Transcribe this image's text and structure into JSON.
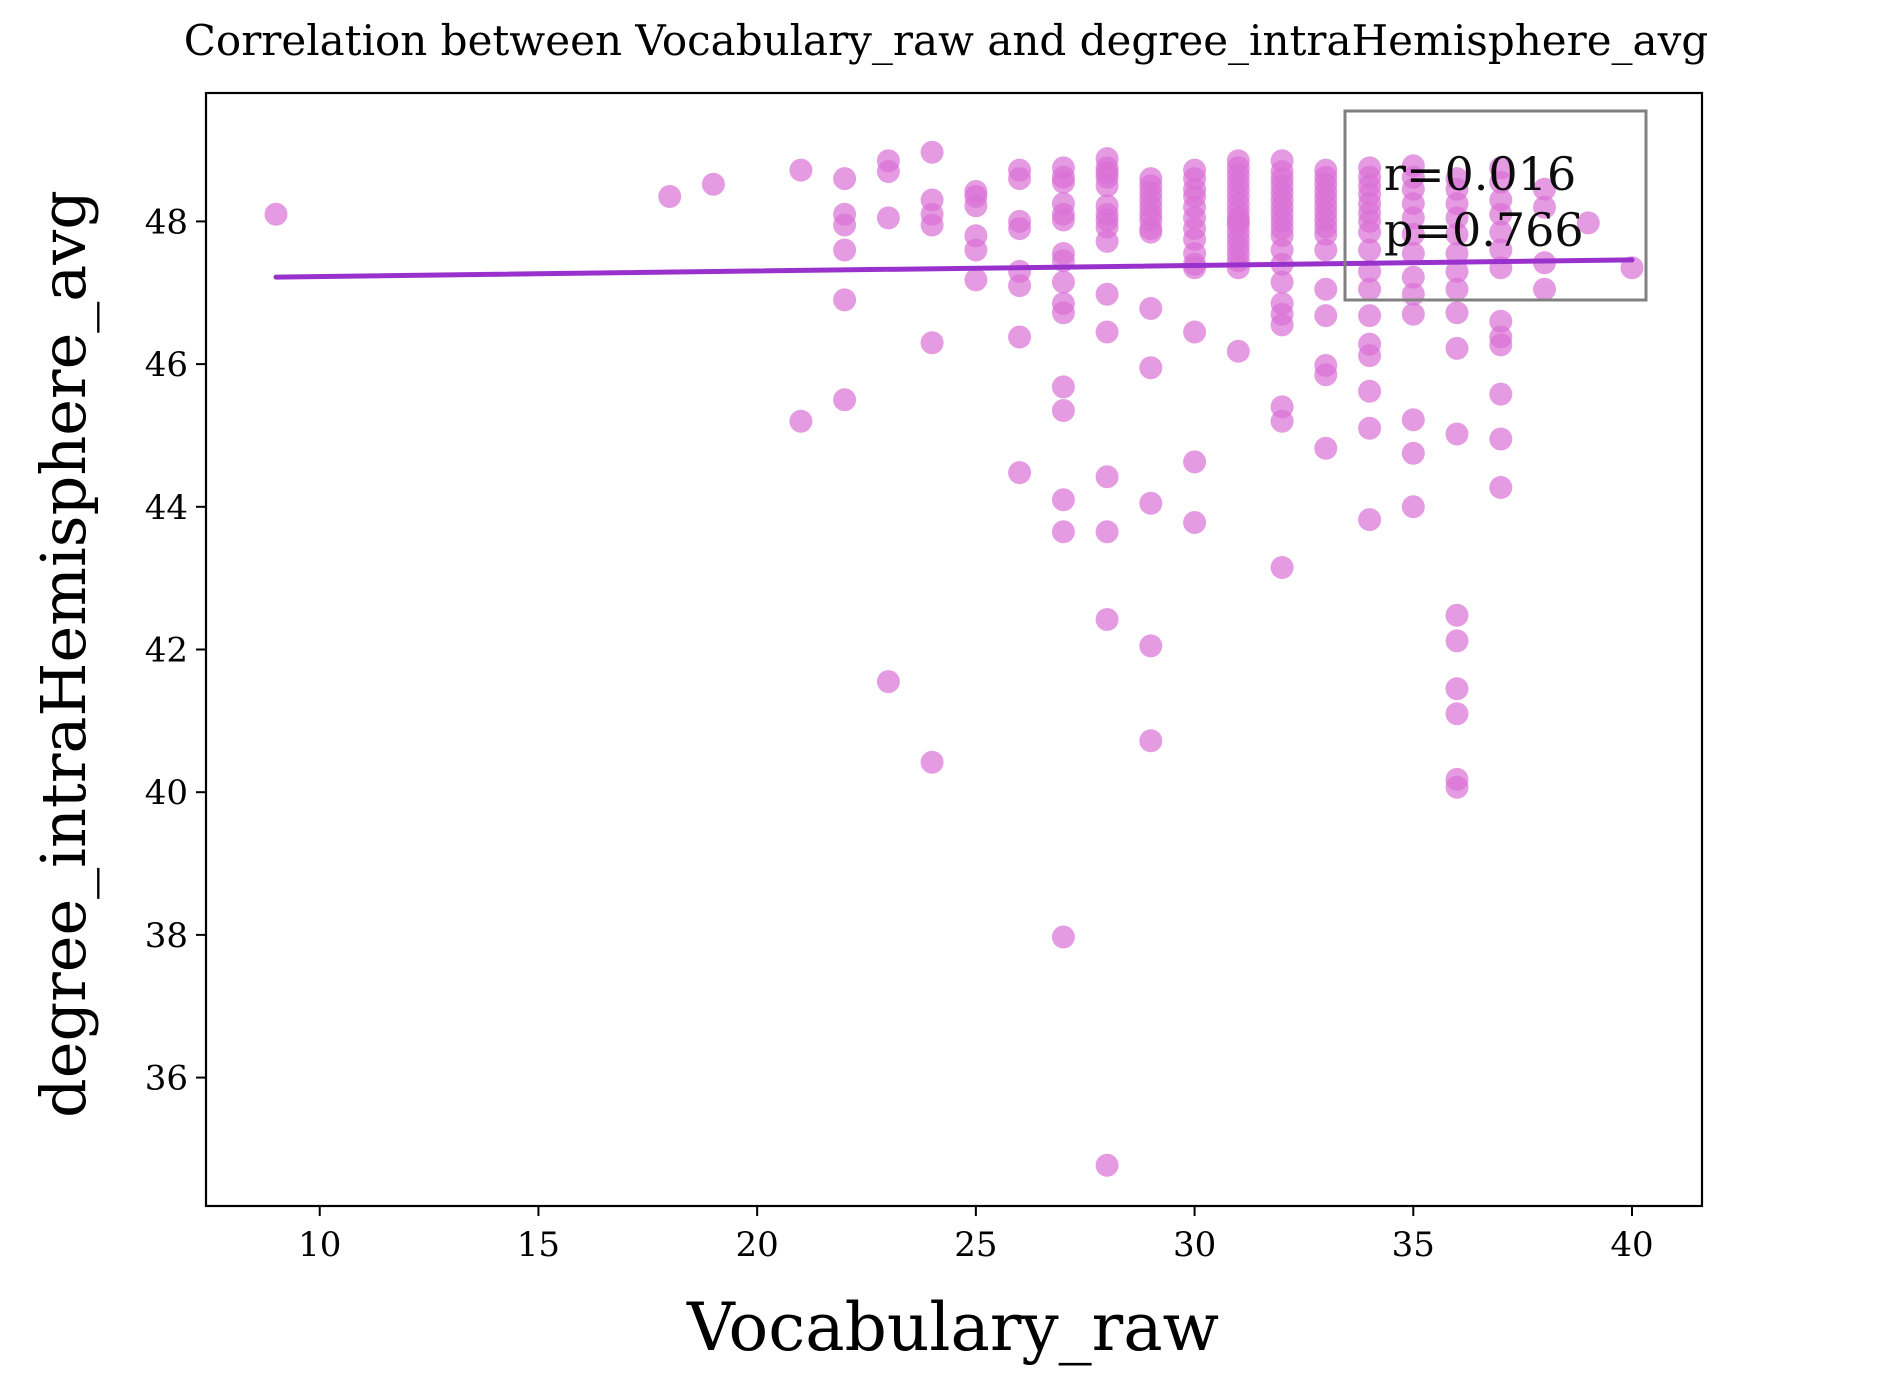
{
  "chart_data": {
    "type": "scatter",
    "title": "Correlation between Vocabulary_raw and degree_intraHemisphere_avg",
    "xlabel": "Vocabulary_raw",
    "ylabel": "degree_intraHemisphere_avg",
    "xlim": [
      7.4,
      41.6
    ],
    "ylim": [
      34.2,
      49.8
    ],
    "xticks": [
      10,
      15,
      20,
      25,
      30,
      35,
      40
    ],
    "yticks": [
      36,
      38,
      40,
      42,
      44,
      46,
      48
    ],
    "grid": false,
    "annotation": {
      "lines": [
        "r=0.016",
        "p=0.766"
      ],
      "placement": "top-right"
    },
    "colors": {
      "points": "#da70d6",
      "regression_line": "#9932cc",
      "annotation_text": "#808080",
      "annotation_border": "#808080"
    },
    "regression_line": {
      "x": [
        9,
        40
      ],
      "y": [
        47.22,
        47.46
      ]
    },
    "series": [
      {
        "x": [
          9,
          18,
          19,
          21,
          21,
          22,
          22,
          22,
          22,
          22,
          22,
          23,
          23,
          23,
          23,
          24,
          24,
          24,
          24,
          24,
          24,
          25,
          25,
          25,
          25,
          25,
          25,
          26,
          26,
          26,
          26,
          26,
          26,
          26,
          26,
          27,
          27,
          27,
          27,
          27,
          27,
          27,
          27,
          27,
          27,
          27,
          27,
          27,
          27,
          27,
          27,
          28,
          28,
          28,
          28,
          28,
          28,
          28,
          28,
          28,
          28,
          28,
          28,
          28,
          28,
          28,
          28,
          29,
          29,
          29,
          29,
          29,
          29,
          29,
          29,
          29,
          29,
          29,
          29,
          29,
          29,
          30,
          30,
          30,
          30,
          30,
          30,
          30,
          30,
          30,
          30,
          30,
          30,
          30,
          30,
          31,
          31,
          31,
          31,
          31,
          31,
          31,
          31,
          31,
          31,
          31,
          31,
          31,
          31,
          31,
          31,
          31,
          31,
          32,
          32,
          32,
          32,
          32,
          32,
          32,
          32,
          32,
          32,
          32,
          32,
          32,
          32,
          32,
          32,
          32,
          32,
          32,
          32,
          33,
          33,
          33,
          33,
          33,
          33,
          33,
          33,
          33,
          33,
          33,
          33,
          33,
          33,
          33,
          33,
          34,
          34,
          34,
          34,
          34,
          34,
          34,
          34,
          34,
          34,
          34,
          34,
          34,
          34,
          34,
          34,
          34,
          35,
          35,
          35,
          35,
          35,
          35,
          35,
          35,
          35,
          35,
          35,
          35,
          35,
          36,
          36,
          36,
          36,
          36,
          36,
          36,
          36,
          36,
          36,
          36,
          36,
          36,
          36,
          36,
          36,
          36,
          37,
          37,
          37,
          37,
          37,
          37,
          37,
          37,
          37,
          37,
          37,
          37,
          37,
          38,
          38,
          38,
          38,
          39,
          40
        ],
        "y": [
          48.1,
          48.35,
          48.52,
          48.72,
          45.2,
          48.6,
          48.1,
          47.95,
          47.6,
          46.9,
          45.5,
          48.85,
          48.7,
          48.05,
          41.55,
          48.97,
          48.3,
          48.1,
          47.95,
          46.3,
          40.42,
          48.42,
          48.35,
          48.22,
          47.8,
          47.6,
          47.18,
          48.72,
          48.6,
          48.0,
          47.9,
          47.3,
          47.1,
          46.38,
          44.48,
          48.75,
          48.62,
          48.55,
          48.25,
          48.1,
          48.02,
          47.55,
          47.45,
          47.15,
          46.85,
          46.72,
          45.68,
          45.35,
          44.1,
          43.65,
          37.97,
          48.88,
          48.75,
          48.62,
          48.5,
          48.22,
          48.1,
          48.02,
          47.92,
          47.72,
          46.98,
          46.45,
          44.42,
          43.65,
          42.42,
          34.77,
          48.68,
          48.6,
          48.5,
          48.4,
          48.3,
          48.2,
          48.1,
          48.02,
          47.9,
          47.85,
          46.78,
          45.95,
          44.05,
          42.05,
          40.72,
          48.72,
          48.6,
          48.45,
          48.2,
          48.05,
          47.9,
          47.75,
          47.55,
          47.4,
          47.35,
          46.45,
          44.63,
          43.78,
          48.35,
          48.85,
          48.75,
          48.65,
          48.55,
          48.45,
          48.35,
          48.25,
          48.15,
          48.05,
          47.95,
          47.85,
          47.75,
          47.65,
          47.55,
          47.45,
          47.35,
          46.18,
          48.0,
          48.85,
          48.7,
          48.6,
          48.5,
          48.4,
          48.3,
          48.2,
          48.1,
          48.0,
          47.9,
          47.8,
          47.6,
          47.4,
          47.15,
          46.85,
          46.7,
          46.55,
          45.4,
          45.2,
          43.15,
          48.72,
          48.62,
          48.52,
          48.42,
          48.32,
          48.22,
          48.12,
          48.02,
          47.92,
          47.82,
          47.6,
          47.05,
          46.68,
          45.98,
          45.85,
          44.82,
          48.75,
          48.62,
          48.5,
          48.38,
          48.25,
          48.12,
          48.0,
          47.85,
          47.6,
          47.3,
          47.05,
          46.68,
          46.28,
          46.12,
          45.62,
          45.1,
          43.82,
          48.78,
          48.62,
          48.45,
          48.25,
          48.05,
          47.82,
          47.55,
          47.22,
          46.98,
          46.7,
          45.22,
          44.75,
          44.0,
          48.6,
          48.45,
          48.25,
          48.05,
          47.82,
          47.55,
          47.3,
          47.05,
          46.72,
          46.22,
          45.02,
          42.48,
          42.12,
          41.45,
          41.1,
          40.18,
          40.07,
          48.75,
          48.55,
          48.3,
          48.1,
          47.85,
          47.6,
          47.35,
          46.6,
          46.38,
          46.27,
          45.58,
          44.95,
          44.27,
          48.45,
          48.2,
          47.42,
          47.05,
          47.98,
          47.35
        ]
      }
    ]
  }
}
